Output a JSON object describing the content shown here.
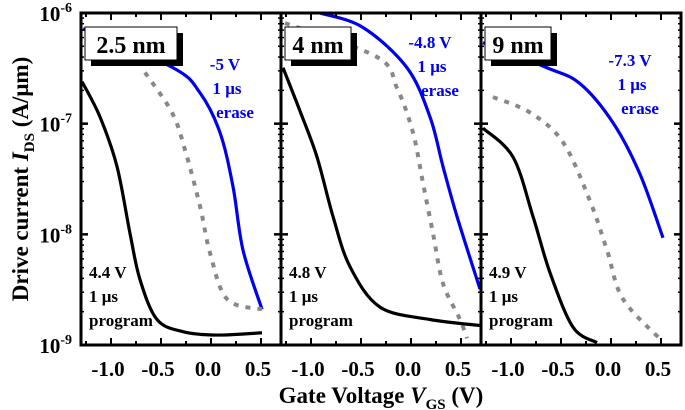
{
  "chart_data": {
    "type": "line",
    "ylabel": "Drive current I_DS (A/μm)",
    "ylabel_parts": {
      "pre": "Drive current ",
      "var": "I",
      "sub": "DS",
      "post": " (A/μm)"
    },
    "xlabel": "Gate Voltage V_GS (V)",
    "xlabel_parts": {
      "pre": "Gate Voltage ",
      "var": "V",
      "sub": "GS",
      "post": " (V)"
    },
    "y_scale": "log",
    "ylim": [
      1e-09,
      1e-06
    ],
    "y_ticks": [
      {
        "base": "10",
        "exp": "-6"
      },
      {
        "base": "10",
        "exp": "-7"
      },
      {
        "base": "10",
        "exp": "-8"
      },
      {
        "base": "10",
        "exp": "-9"
      }
    ],
    "xlim": [
      -1.3,
      0.7
    ],
    "x_ticks": [
      "-1.0",
      "-0.5",
      "0.0",
      "0.5"
    ],
    "x_tick_values": [
      -1.0,
      -0.5,
      0.0,
      0.5
    ],
    "grid": false,
    "colors": {
      "erase": "#0000ee",
      "program": "#000000",
      "initial": "#888888"
    },
    "panels": [
      {
        "label": "2.5 nm",
        "erase_annotation": [
          "-5 V",
          "1 μs",
          "erase"
        ],
        "program_annotation": [
          "4.4 V",
          "1 μs",
          "program"
        ],
        "series": [
          {
            "role": "erase",
            "style": "solid",
            "x": [
              -1.28,
              -0.38,
              -0.11,
              0.09,
              0.22,
              0.32,
              0.51
            ],
            "y": [
              7.2e-07,
              3.2e-07,
              1.9e-07,
              8.3e-08,
              2.7e-08,
              7.2e-09,
              2.1e-09
            ]
          },
          {
            "role": "initial",
            "style": "dashed",
            "x": [
              -0.66,
              -0.39,
              -0.26,
              -0.11,
              -0.01,
              0.16,
              0.51
            ],
            "y": [
              2.9e-07,
              1.26e-07,
              5.8e-08,
              1.8e-08,
              6.8e-09,
              2.6e-09,
              2.1e-09
            ]
          },
          {
            "role": "program",
            "style": "solid",
            "x": [
              -1.29,
              -1.11,
              -0.94,
              -0.81,
              -0.71,
              -0.54,
              -0.28,
              0.06,
              0.51
            ],
            "y": [
              2.4e-07,
              1.15e-07,
              4.1e-08,
              1.02e-08,
              3.9e-09,
              1.7e-09,
              1.32e-09,
              1.23e-09,
              1.29e-09
            ]
          }
        ]
      },
      {
        "label": "4 nm",
        "erase_annotation": [
          "-4.8 V",
          "1 μs",
          "erase"
        ],
        "program_annotation": [
          "4.8 V",
          "1 μs",
          "program"
        ],
        "series": [
          {
            "role": "erase",
            "style": "solid",
            "x": [
              -1.0,
              -0.91,
              -0.48,
              -0.04,
              0.19,
              0.32,
              0.46,
              0.69
            ],
            "y": [
              1.05e-06,
              1e-06,
              7.4e-07,
              3.2e-07,
              1.15e-07,
              4.1e-08,
              1.45e-08,
              3.2e-09
            ]
          },
          {
            "role": "initial",
            "style": "dashed",
            "x": [
              -1.26,
              -0.34,
              -0.14,
              0.02,
              0.12,
              0.22,
              0.32,
              0.49,
              0.56
            ],
            "y": [
              8.1e-07,
              4e-07,
              2.1e-07,
              8.3e-08,
              2.9e-08,
              1.02e-08,
              3.6e-09,
              1.7e-09,
              1.15e-09
            ]
          },
          {
            "role": "program",
            "style": "solid",
            "x": [
              -1.28,
              -1.11,
              -0.94,
              -0.78,
              -0.61,
              -0.31,
              0.19,
              0.69
            ],
            "y": [
              3.2e-07,
              1.3e-07,
              5e-08,
              1.45e-08,
              5.1e-09,
              2.2e-09,
              1.7e-09,
              1.5e-09
            ]
          }
        ]
      },
      {
        "label": "9 nm",
        "erase_annotation": [
          "-7.3 V",
          "1 μs",
          "erase"
        ],
        "program_annotation": [
          "4.9 V",
          "1 μs",
          "program"
        ],
        "series": [
          {
            "role": "erase",
            "style": "solid",
            "x": [
              -1.28,
              -0.64,
              -0.31,
              0.02,
              0.29,
              0.52
            ],
            "y": [
              5.4e-07,
              3.2e-07,
              2.3e-07,
              1.02e-07,
              3.5e-08,
              9.3e-09
            ]
          },
          {
            "role": "initial",
            "style": "dashed",
            "x": [
              -1.18,
              -0.81,
              -0.48,
              -0.21,
              -0.04,
              0.12,
              0.52
            ],
            "y": [
              1.74e-07,
              1.26e-07,
              6.8e-08,
              2e-08,
              7.2e-09,
              2.6e-09,
              1.07e-09
            ]
          },
          {
            "role": "program",
            "style": "solid",
            "x": [
              -1.28,
              -0.98,
              -0.78,
              -0.61,
              -0.38,
              -0.14
            ],
            "y": [
              9.1e-08,
              5e-08,
              1.45e-08,
              4.5e-09,
              1.45e-09,
              1.05e-09
            ]
          }
        ]
      }
    ]
  }
}
